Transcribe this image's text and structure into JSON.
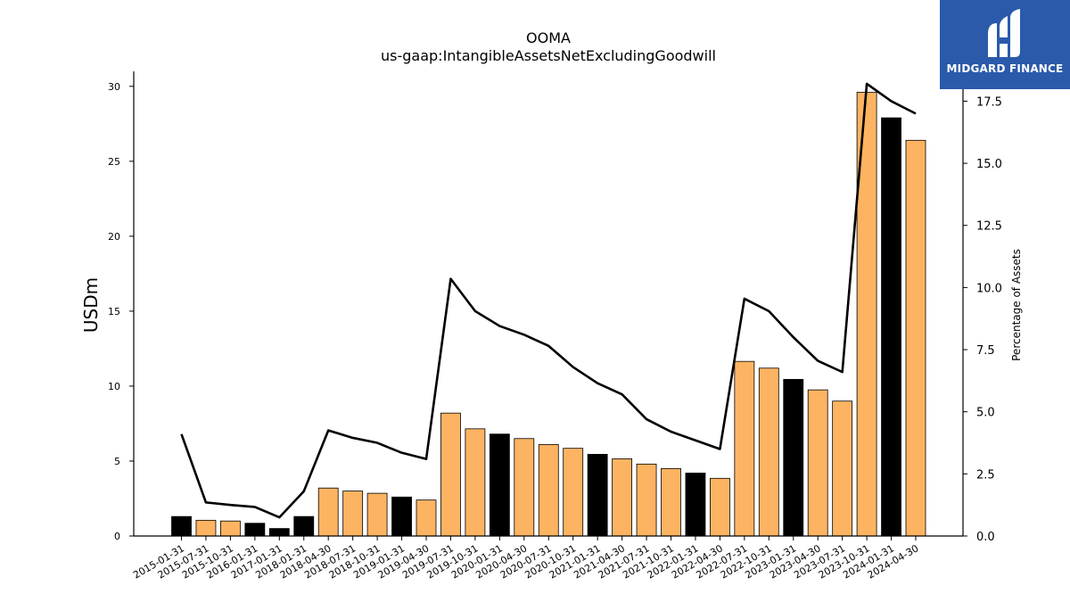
{
  "chart_data": {
    "type": "bar",
    "title": "OOMA",
    "subtitle": "us-gaap:IntangibleAssetsNetExcludingGoodwill",
    "ylabel": "USDm",
    "y2label": "Percentage of Assets",
    "ylim": [
      0,
      31
    ],
    "y2lim": [
      0,
      18.7
    ],
    "yticks": [
      0,
      5,
      10,
      15,
      20,
      25,
      30
    ],
    "y2ticks": [
      "0.0",
      "2.5",
      "5.0",
      "7.5",
      "10.0",
      "12.5",
      "15.0",
      "17.5"
    ],
    "categories": [
      "2015-01-31",
      "2015-07-31",
      "2015-10-31",
      "2016-01-31",
      "2017-01-31",
      "2018-01-31",
      "2018-04-30",
      "2018-07-31",
      "2018-10-31",
      "2019-01-31",
      "2019-04-30",
      "2019-07-31",
      "2019-10-31",
      "2020-01-31",
      "2020-04-30",
      "2020-07-31",
      "2020-10-31",
      "2021-01-31",
      "2021-04-30",
      "2021-07-31",
      "2021-10-31",
      "2022-01-31",
      "2022-04-30",
      "2022-07-31",
      "2022-10-31",
      "2023-01-31",
      "2023-04-30",
      "2023-07-31",
      "2023-10-31",
      "2024-01-31",
      "2024-04-30"
    ],
    "values": [
      1.3,
      1.05,
      1.0,
      0.85,
      0.5,
      1.3,
      3.2,
      3.0,
      2.85,
      2.6,
      2.4,
      8.2,
      7.15,
      6.8,
      6.5,
      6.1,
      5.85,
      5.45,
      5.15,
      4.8,
      4.5,
      4.2,
      3.85,
      11.65,
      11.2,
      10.45,
      9.75,
      9.0,
      29.6,
      27.9,
      26.4
    ],
    "bar_kinds": [
      "annual",
      "quarterly",
      "quarterly",
      "annual",
      "annual",
      "annual",
      "quarterly",
      "quarterly",
      "quarterly",
      "annual",
      "quarterly",
      "quarterly",
      "quarterly",
      "annual",
      "quarterly",
      "quarterly",
      "quarterly",
      "annual",
      "quarterly",
      "quarterly",
      "quarterly",
      "annual",
      "quarterly",
      "quarterly",
      "quarterly",
      "annual",
      "quarterly",
      "quarterly",
      "quarterly",
      "annual",
      "quarterly"
    ],
    "line_values": [
      4.1,
      1.35,
      1.25,
      1.17,
      0.75,
      1.8,
      4.25,
      3.95,
      3.75,
      3.35,
      3.1,
      10.35,
      9.05,
      8.45,
      8.1,
      7.65,
      6.8,
      6.15,
      5.7,
      4.7,
      4.2,
      3.85,
      3.5,
      9.55,
      9.05,
      8.0,
      7.05,
      6.6,
      18.2,
      17.5,
      17.0
    ],
    "colors": {
      "annual": "#000000",
      "quarterly": "#fdb462",
      "line": "#000000",
      "bar_edge": "#000000"
    }
  },
  "logo": {
    "text": "MIDGARD FINANCE",
    "background": "#2b5aab"
  }
}
